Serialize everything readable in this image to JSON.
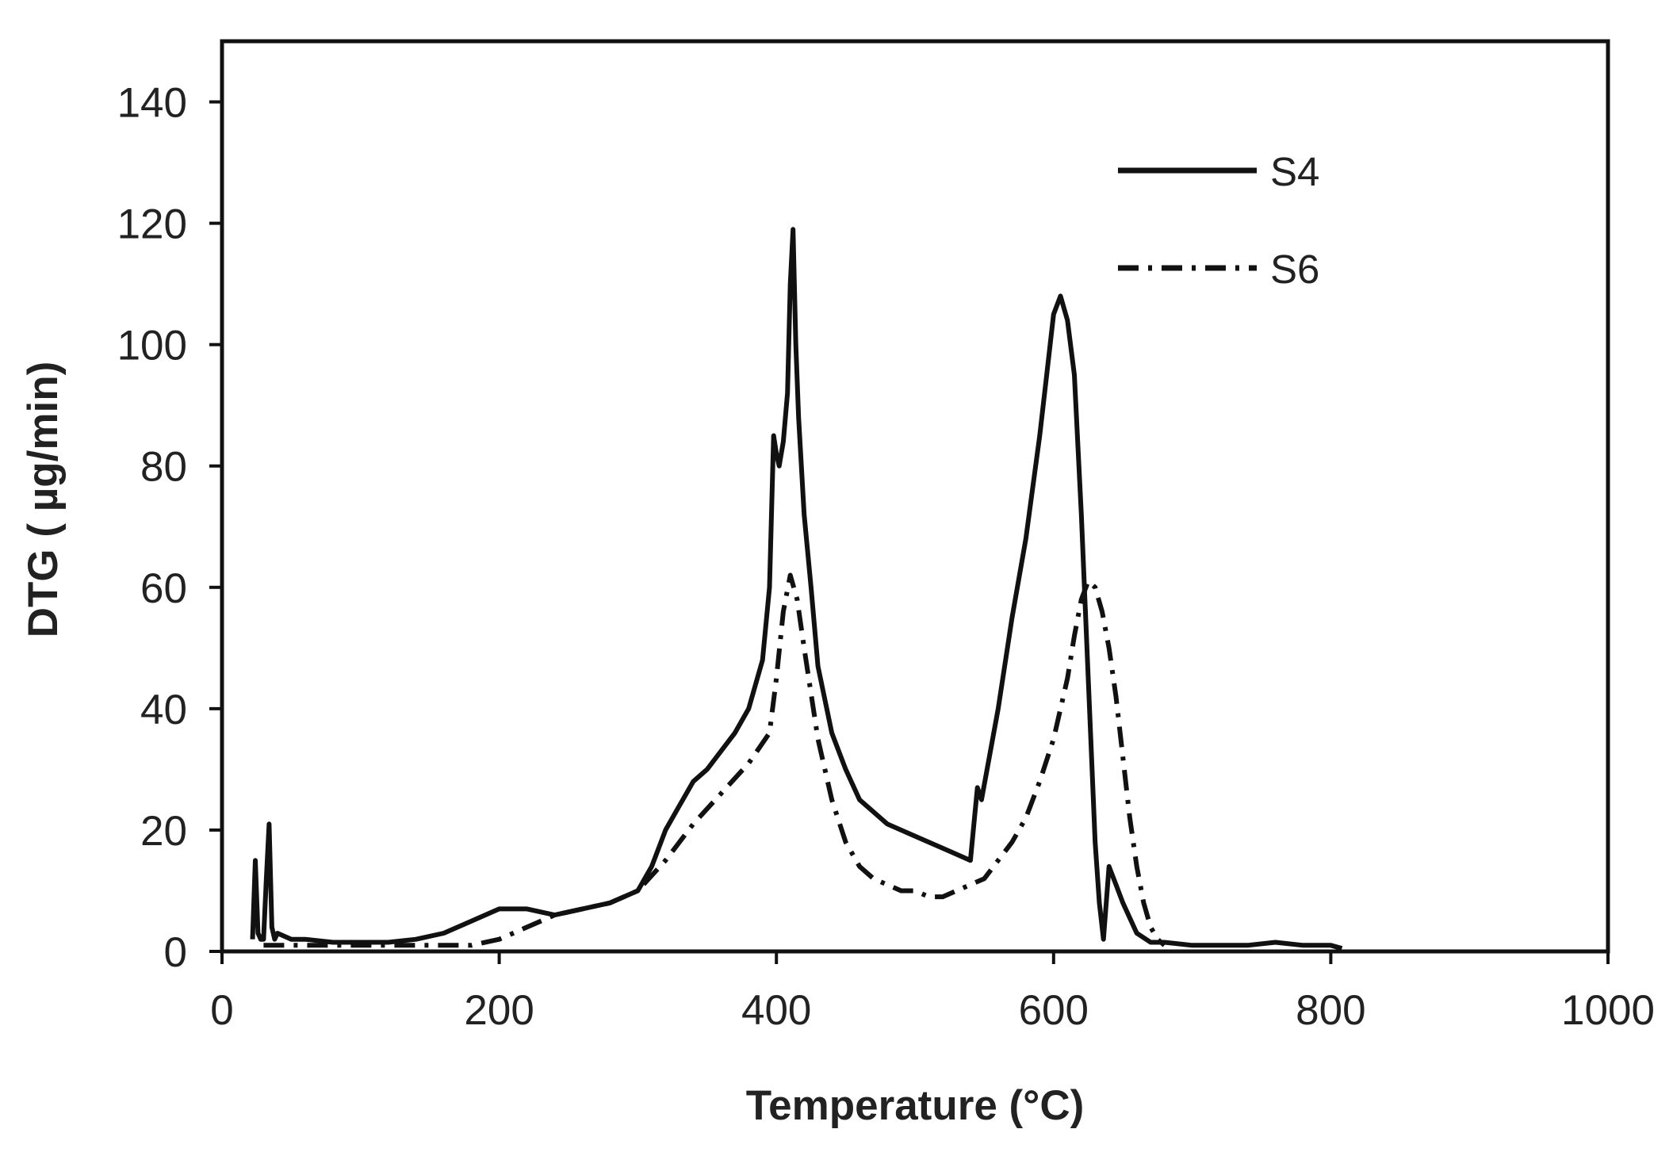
{
  "chart_data": {
    "type": "line",
    "xlabel": "Temperature (°C)",
    "ylabel": "DTG ( µg/min)",
    "xlim": [
      0,
      1000
    ],
    "ylim": [
      0,
      150
    ],
    "xticks": [
      0,
      200,
      400,
      600,
      800,
      1000
    ],
    "yticks": [
      0,
      20,
      40,
      60,
      80,
      100,
      120,
      140
    ],
    "grid": false,
    "legend": {
      "position": "top-right",
      "entries": [
        "S4",
        "S6"
      ]
    },
    "series": [
      {
        "name": "S4",
        "style": "solid",
        "color": "#111111",
        "x": [
          22,
          24,
          26,
          28,
          30,
          32,
          34,
          36,
          38,
          40,
          50,
          60,
          80,
          100,
          120,
          140,
          160,
          180,
          200,
          220,
          240,
          260,
          280,
          300,
          310,
          320,
          330,
          340,
          350,
          360,
          370,
          380,
          390,
          395,
          398,
          400,
          402,
          405,
          408,
          410,
          412,
          414,
          416,
          420,
          425,
          430,
          440,
          450,
          460,
          470,
          480,
          500,
          520,
          530,
          540,
          545,
          548,
          552,
          560,
          570,
          580,
          590,
          595,
          600,
          605,
          610,
          615,
          620,
          625,
          630,
          633,
          636,
          640,
          645,
          650,
          660,
          670,
          680,
          700,
          720,
          740,
          760,
          780,
          800,
          808
        ],
        "y": [
          2,
          15,
          3,
          2,
          2,
          12,
          21,
          4,
          2,
          3,
          2,
          2,
          1.5,
          1.5,
          1.5,
          2,
          3,
          5,
          7,
          7,
          6,
          7,
          8,
          10,
          14,
          20,
          24,
          28,
          30,
          33,
          36,
          40,
          48,
          60,
          85,
          82,
          80,
          84,
          92,
          110,
          119,
          100,
          88,
          72,
          60,
          47,
          36,
          30,
          25,
          23,
          21,
          19,
          17,
          16,
          15,
          27,
          25,
          30,
          40,
          55,
          68,
          85,
          95,
          105,
          108,
          104,
          95,
          72,
          45,
          18,
          8,
          2,
          14,
          11,
          8,
          3,
          1.5,
          1.5,
          1,
          1,
          1,
          1.5,
          1,
          1,
          0.5
        ]
      },
      {
        "name": "S6",
        "style": "dash-dot",
        "color": "#111111",
        "x": [
          30,
          60,
          100,
          150,
          180,
          200,
          220,
          240,
          260,
          280,
          300,
          320,
          340,
          360,
          380,
          395,
          400,
          405,
          410,
          415,
          420,
          430,
          440,
          450,
          460,
          470,
          480,
          490,
          500,
          510,
          520,
          530,
          540,
          550,
          560,
          570,
          580,
          590,
          600,
          610,
          615,
          620,
          625,
          630,
          635,
          640,
          645,
          650,
          655,
          660,
          665,
          670,
          675,
          680
        ],
        "y": [
          1,
          1,
          1,
          1,
          1,
          2,
          4,
          6,
          7,
          8,
          10,
          15,
          21,
          26,
          31,
          36,
          45,
          56,
          62,
          58,
          50,
          35,
          25,
          18,
          14,
          12,
          11,
          10,
          10,
          9,
          9,
          10,
          11,
          12,
          15,
          18,
          22,
          28,
          35,
          45,
          52,
          58,
          61,
          60,
          56,
          50,
          42,
          32,
          22,
          14,
          8,
          4,
          2,
          1
        ]
      }
    ]
  }
}
